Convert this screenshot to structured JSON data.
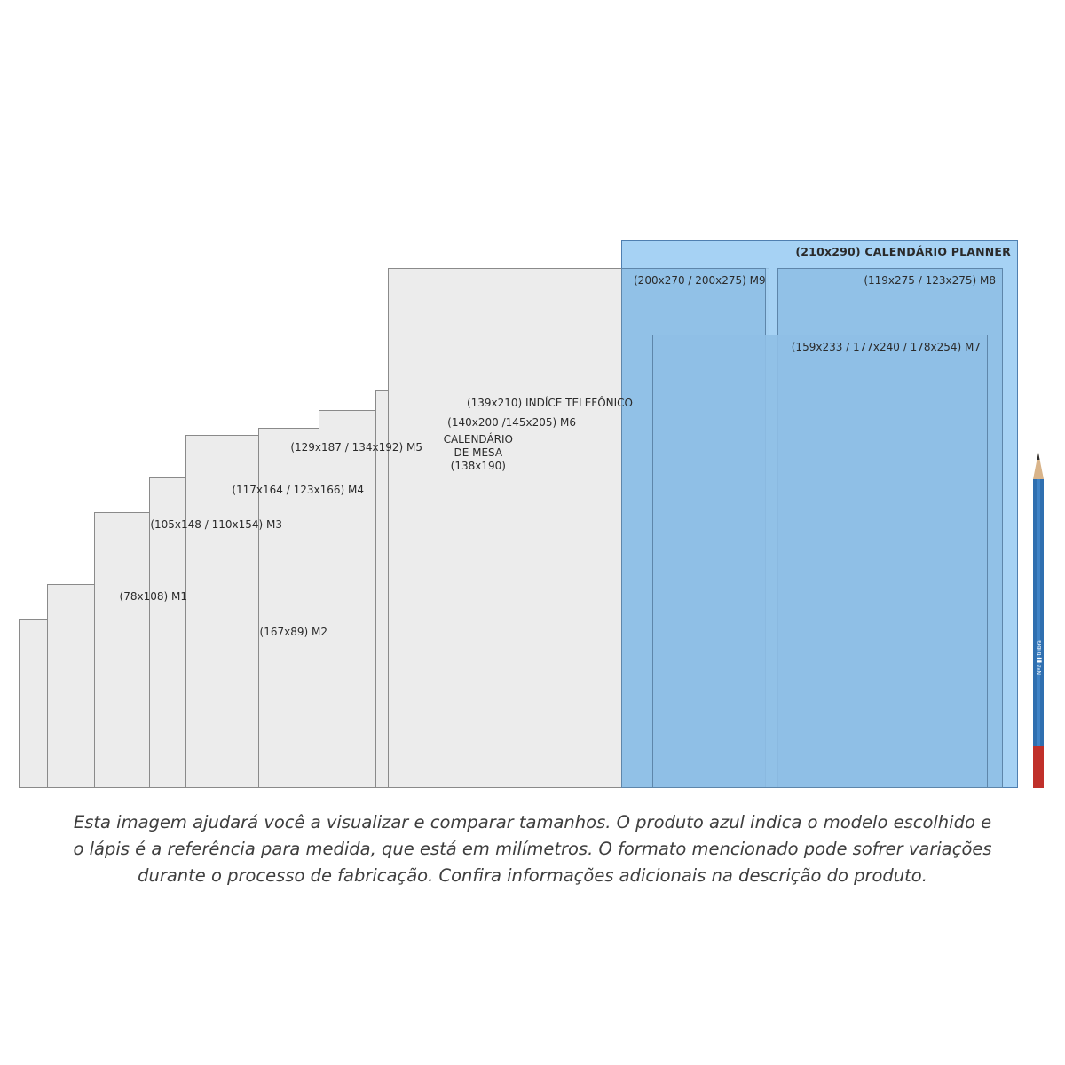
{
  "diagram": {
    "formats": [
      {
        "id": "m2-back",
        "label": ""
      },
      {
        "id": "m1",
        "label": "(78x108) M1"
      },
      {
        "id": "m2",
        "label": "(167x89) M2"
      },
      {
        "id": "m3",
        "label": "(105x148 / 110x154) M3"
      },
      {
        "id": "m4",
        "label": "(117x164 / 123x166) M4"
      },
      {
        "id": "m5",
        "label": "(129x187 / 134x192) M5"
      },
      {
        "id": "calendario-mesa",
        "label": "CALENDÁRIO\nDE MESA\n(138x190)"
      },
      {
        "id": "m6",
        "label": "(140x200 /145x205) M6"
      },
      {
        "id": "indice",
        "label": "(139x210) INDÍCE TELEFÔNICO"
      },
      {
        "id": "large-back",
        "label": ""
      },
      {
        "id": "planner",
        "label": "(210x290) CALENDÁRIO PLANNER",
        "selected": true
      },
      {
        "id": "m9",
        "label": "(200x270 / 200x275) M9"
      },
      {
        "id": "m8",
        "label": "(119x275 / 123x275) M8"
      },
      {
        "id": "m7",
        "label": "(159x233 / 177x240 / 178x254) M7"
      }
    ],
    "colors": {
      "selected_fill": "#96caf2",
      "product_fill": "#8fbfe5",
      "reference_fill": "#ececec",
      "outline": "#8a8a8a"
    }
  },
  "pencil": {
    "icon": "pencil-icon",
    "body_color": "#2f6fb0",
    "end_color": "#c0302a"
  },
  "caption": {
    "line1": "Esta imagem ajudará você a visualizar e comparar tamanhos. O produto azul indica o modelo escolhido e",
    "line2": "o lápis é a referência para medida, que está em milímetros. O formato mencionado pode sofrer variações",
    "line3": "durante o processo de fabricação. Confira informações adicionais na descrição do produto."
  }
}
